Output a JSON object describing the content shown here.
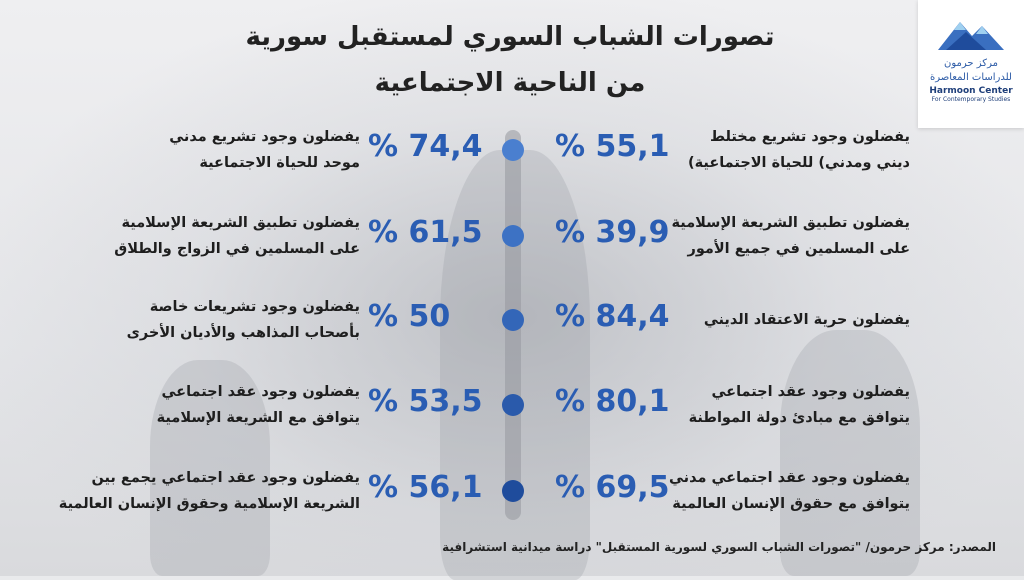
{
  "title_line1": "تصورات الشباب السوري لمستقبل سورية",
  "title_line2": "من الناحية الاجتماعية",
  "logo": {
    "name_ar": "مركز حرمون",
    "sub_ar": "للدراسات المعاصرة",
    "name_en": "Harmoon Center",
    "sub_en": "For Contemporary Studies"
  },
  "colors": {
    "accent": "#2a5db3",
    "dots": [
      "#4a7fcf",
      "#3d72c4",
      "#3366b8",
      "#2a5aab",
      "#1f4c9c"
    ]
  },
  "chart_data": {
    "type": "table",
    "rows": [
      {
        "left": {
          "label_l1": "يفضلون وجود تشريع مدني",
          "label_l2": "موحد للحياة الاجتماعية",
          "value": 74.4,
          "display": "% 74,4"
        },
        "right": {
          "label_l1": "يفضلون وجود تشريع مختلط",
          "label_l2": "ديني ومدني) للحياة الاجتماعية)",
          "value": 55.1,
          "display": "% 55,1"
        }
      },
      {
        "left": {
          "label_l1": "يفضلون تطبيق الشريعة الإسلامية",
          "label_l2": "على المسلمين في الزواج والطلاق",
          "value": 61.5,
          "display": "% 61,5"
        },
        "right": {
          "label_l1": "يفضلون تطبيق الشريعة الإسلامية",
          "label_l2": "على المسلمين في جميع الأمور",
          "value": 39.9,
          "display": "% 39,9"
        }
      },
      {
        "left": {
          "label_l1": "يفضلون وجود تشريعات خاصة",
          "label_l2": "بأصحاب المذاهب والأديان الأخرى",
          "value": 50,
          "display": "% 50"
        },
        "right": {
          "label_l1": "يفضلون حرية الاعتقاد الديني",
          "label_l2": "",
          "value": 84.4,
          "display": "% 84,4"
        }
      },
      {
        "left": {
          "label_l1": "يفضلون وجود عقد اجتماعي",
          "label_l2": "يتوافق مع الشريعة الإسلامية",
          "value": 53.5,
          "display": "% 53,5"
        },
        "right": {
          "label_l1": "يفضلون وجود عقد اجتماعي",
          "label_l2": "يتوافق مع مبادئ دولة المواطنة",
          "value": 80.1,
          "display": "% 80,1"
        }
      },
      {
        "left": {
          "label_l1": "يفضلون وجود عقد اجتماعي يجمع بين",
          "label_l2": "الشريعة الإسلامية وحقوق الإنسان العالمية",
          "value": 56.1,
          "display": "% 56,1"
        },
        "right": {
          "label_l1": "يفضلون وجود عقد اجتماعي مدني",
          "label_l2": "يتوافق مع حقوق الإنسان العالمية",
          "value": 69.5,
          "display": "% 69,5"
        }
      }
    ]
  },
  "source": "المصدر: مركز حرمون/ \"تصورات الشباب السوري لسورية المستقبل\" دراسة ميدانية استشرافية"
}
